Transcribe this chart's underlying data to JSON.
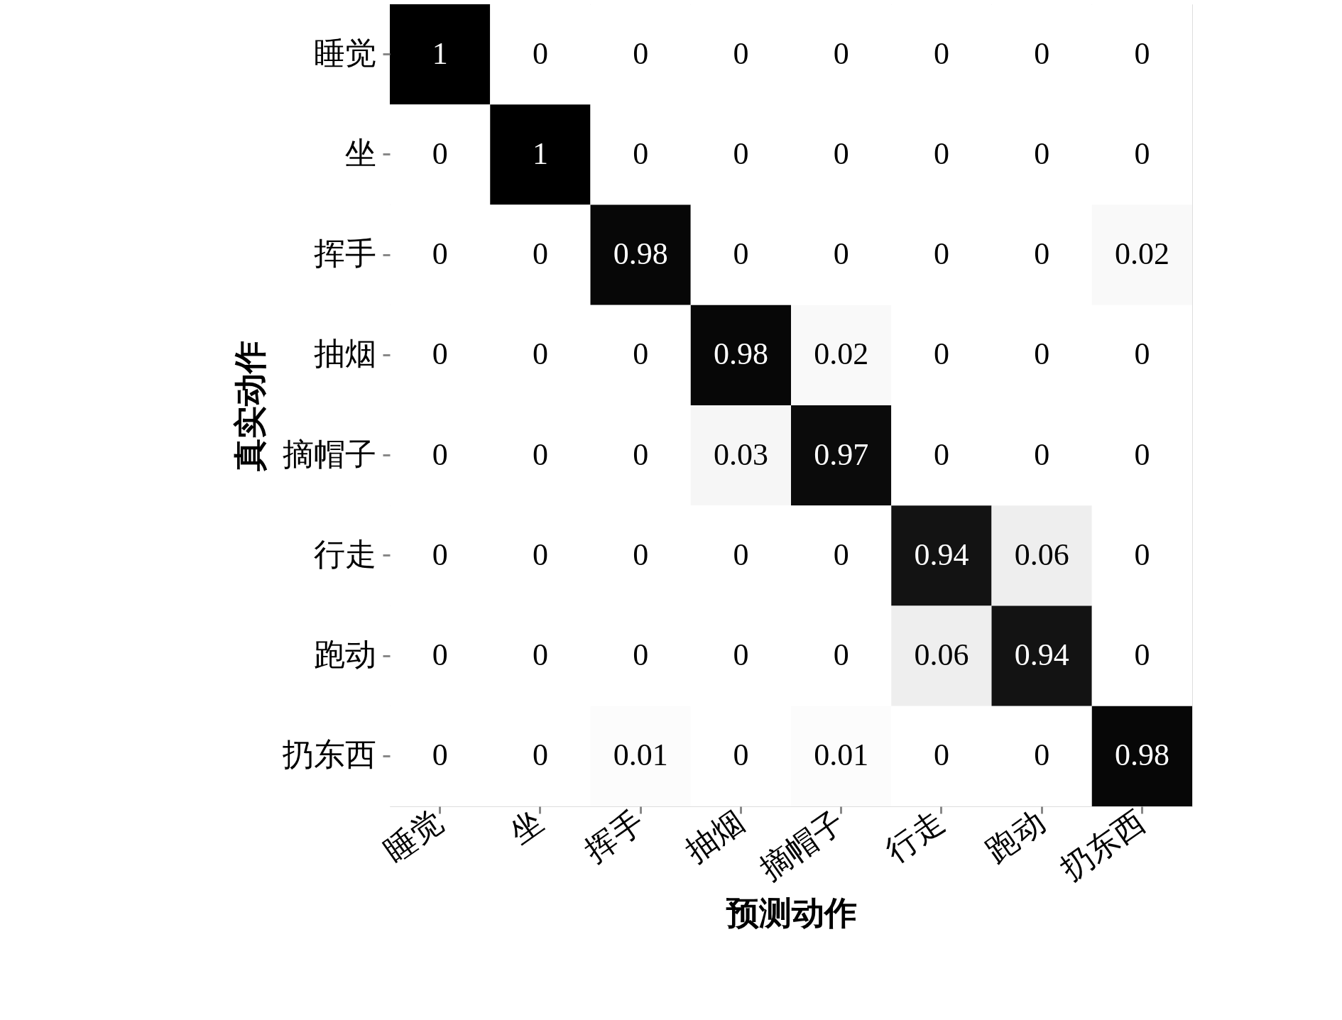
{
  "chart_data": {
    "type": "heatmap",
    "xlabel": "预测动作",
    "ylabel": "真实动作",
    "categories": [
      "睡觉",
      "坐",
      "挥手",
      "抽烟",
      "摘帽子",
      "行走",
      "跑动",
      "扔东西"
    ],
    "y_categories": [
      "睡觉",
      "坐",
      "挥手",
      "抽烟",
      "摘帽子",
      "行走",
      "跑动",
      "扔东西"
    ],
    "cells": [
      [
        1,
        0,
        0,
        0,
        0,
        0,
        0,
        0
      ],
      [
        0,
        1,
        0,
        0,
        0,
        0,
        0,
        0
      ],
      [
        0,
        0,
        0.98,
        0,
        0,
        0,
        0,
        0.02
      ],
      [
        0,
        0,
        0,
        0.98,
        0.02,
        0,
        0,
        0
      ],
      [
        0,
        0,
        0,
        0.03,
        0.97,
        0,
        0,
        0
      ],
      [
        0,
        0,
        0,
        0,
        0,
        0.94,
        0.06,
        0
      ],
      [
        0,
        0,
        0,
        0,
        0,
        0.06,
        0.94,
        0
      ],
      [
        0,
        0,
        0.01,
        0,
        0.01,
        0,
        0,
        0.98
      ]
    ],
    "data_labels": true
  }
}
